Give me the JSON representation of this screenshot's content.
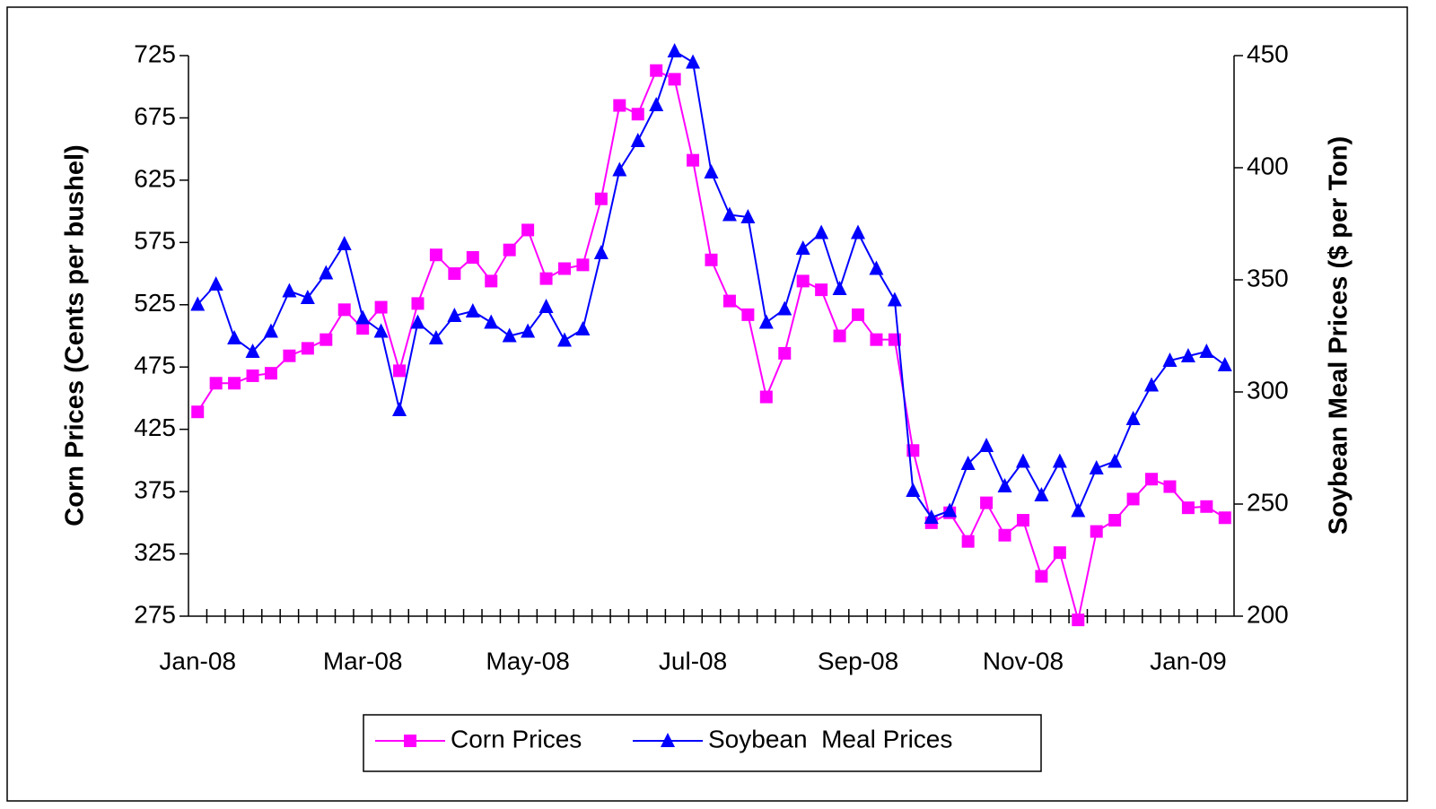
{
  "chart_data": {
    "type": "line",
    "y_label": "Corn Prices (Cents per bushel)",
    "y2_label": "Soybean Meal Prices ($ per Ton)",
    "categories": [
      "Jan-08",
      null,
      null,
      null,
      null,
      null,
      null,
      null,
      null,
      "Mar-08",
      null,
      null,
      null,
      null,
      null,
      null,
      null,
      null,
      "May-08",
      null,
      null,
      null,
      null,
      null,
      null,
      null,
      null,
      "Jul-08",
      null,
      null,
      null,
      null,
      null,
      null,
      null,
      null,
      "Sep-08",
      null,
      null,
      null,
      null,
      null,
      null,
      null,
      null,
      "Nov-08",
      null,
      null,
      null,
      null,
      null,
      null,
      null,
      null,
      "Jan-09",
      null,
      null
    ],
    "ylim": [
      275,
      725
    ],
    "yticks": [
      275,
      325,
      375,
      425,
      475,
      525,
      575,
      625,
      675,
      725
    ],
    "y2lim": [
      200,
      450
    ],
    "y2ticks": [
      200,
      250,
      300,
      350,
      400,
      450
    ],
    "grid": false,
    "legend": "bottom",
    "series": [
      {
        "name": "Corn Prices",
        "color": "#ff00ff",
        "marker": "square",
        "values": [
          439,
          462,
          462,
          468,
          470,
          484,
          490,
          497,
          521,
          506,
          523,
          472,
          526,
          565,
          550,
          563,
          544,
          569,
          585,
          546,
          554,
          557,
          610,
          685,
          678,
          713,
          706,
          641,
          561,
          528,
          517,
          451,
          486,
          544,
          537,
          500,
          517,
          497,
          497,
          408,
          350,
          358,
          335,
          366,
          340,
          352,
          307,
          326,
          272,
          343,
          352,
          369,
          385,
          379,
          362,
          363,
          354
        ]
      },
      {
        "name": "Soybean  Meal Prices",
        "color": "#0000ff",
        "marker": "triangle",
        "axis": "y2",
        "values": [
          339,
          348,
          324,
          318,
          327,
          345,
          342,
          353,
          366,
          333,
          327,
          292,
          331,
          324,
          334,
          336,
          331,
          325,
          327,
          338,
          323,
          328,
          362,
          399,
          412,
          428,
          452,
          447,
          398,
          379,
          378,
          331,
          337,
          364,
          371,
          346,
          371,
          355,
          341,
          256,
          244,
          247,
          268,
          276,
          258,
          269,
          254,
          269,
          247,
          266,
          269,
          288,
          303,
          314,
          316,
          318,
          312
        ]
      }
    ]
  }
}
